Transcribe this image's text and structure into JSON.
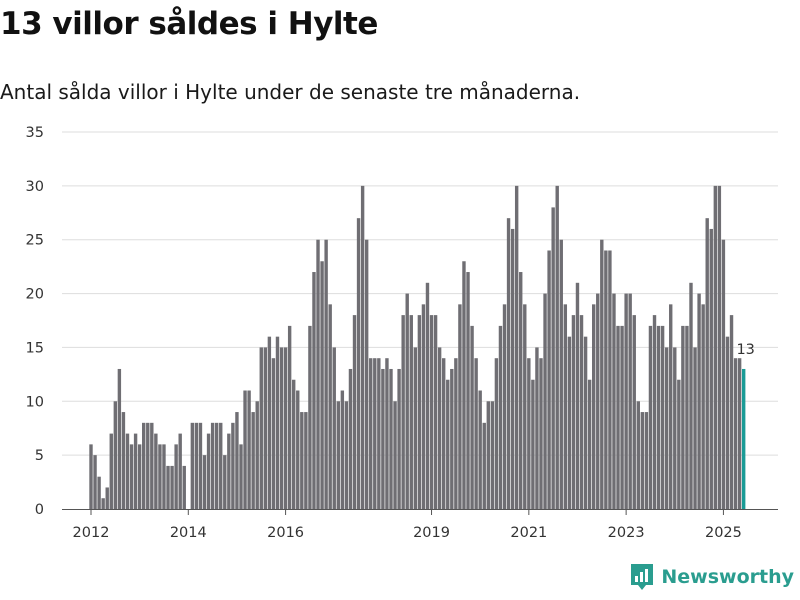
{
  "title": "13 villor såldes i Hylte",
  "subtitle": "Antal sålda villor i Hylte under de senaste tre månaderna.",
  "brand": {
    "name": "Newsworthy",
    "color": "#2a9d8f",
    "icon": "newsworthy-logo-icon"
  },
  "colors": {
    "bar": "#6f6e73",
    "highlight": "#1a9b96",
    "grid": "#dddddd",
    "axis": "#555555"
  },
  "chart_data": {
    "type": "bar",
    "title": "13 villor såldes i Hylte",
    "subtitle": "Antal sålda villor i Hylte under de senaste tre månaderna.",
    "xlabel": "",
    "ylabel": "",
    "ylim": [
      0,
      35
    ],
    "yticks": [
      0,
      5,
      10,
      15,
      20,
      25,
      30,
      35
    ],
    "grid": true,
    "legend": "none",
    "x_unit": "month",
    "x_start": "2012-01",
    "xticks": [
      {
        "label": "2012",
        "month": "2012-01"
      },
      {
        "label": "2014",
        "month": "2014-01"
      },
      {
        "label": "2016",
        "month": "2016-01"
      },
      {
        "label": "2019",
        "month": "2019-01"
      },
      {
        "label": "2021",
        "month": "2021-01"
      },
      {
        "label": "2023",
        "month": "2023-01"
      },
      {
        "label": "2025",
        "month": "2025-01"
      }
    ],
    "values": [
      6,
      5,
      3,
      1,
      2,
      7,
      10,
      13,
      9,
      7,
      6,
      7,
      6,
      8,
      8,
      8,
      7,
      6,
      6,
      4,
      4,
      6,
      7,
      4,
      null,
      8,
      8,
      8,
      5,
      7,
      8,
      8,
      8,
      5,
      7,
      8,
      9,
      6,
      11,
      11,
      9,
      10,
      15,
      15,
      16,
      14,
      16,
      15,
      15,
      17,
      12,
      11,
      9,
      9,
      17,
      22,
      25,
      23,
      25,
      19,
      15,
      10,
      11,
      10,
      13,
      18,
      27,
      30,
      25,
      14,
      14,
      14,
      13,
      14,
      13,
      10,
      13,
      18,
      20,
      18,
      15,
      18,
      19,
      21,
      18,
      18,
      15,
      14,
      12,
      13,
      14,
      19,
      23,
      22,
      17,
      14,
      11,
      8,
      10,
      10,
      14,
      17,
      19,
      27,
      26,
      30,
      22,
      19,
      14,
      12,
      15,
      14,
      20,
      24,
      28,
      30,
      25,
      19,
      16,
      18,
      21,
      18,
      16,
      12,
      19,
      20,
      25,
      24,
      24,
      20,
      17,
      17,
      20,
      20,
      18,
      10,
      9,
      9,
      17,
      18,
      17,
      17,
      15,
      19,
      15,
      12,
      17,
      17,
      21,
      15,
      20,
      19,
      27,
      26,
      30,
      30,
      25,
      16,
      18,
      14,
      14,
      13
    ],
    "highlight_index": 161,
    "annotations": [
      {
        "text": "13",
        "index": 161
      }
    ]
  }
}
